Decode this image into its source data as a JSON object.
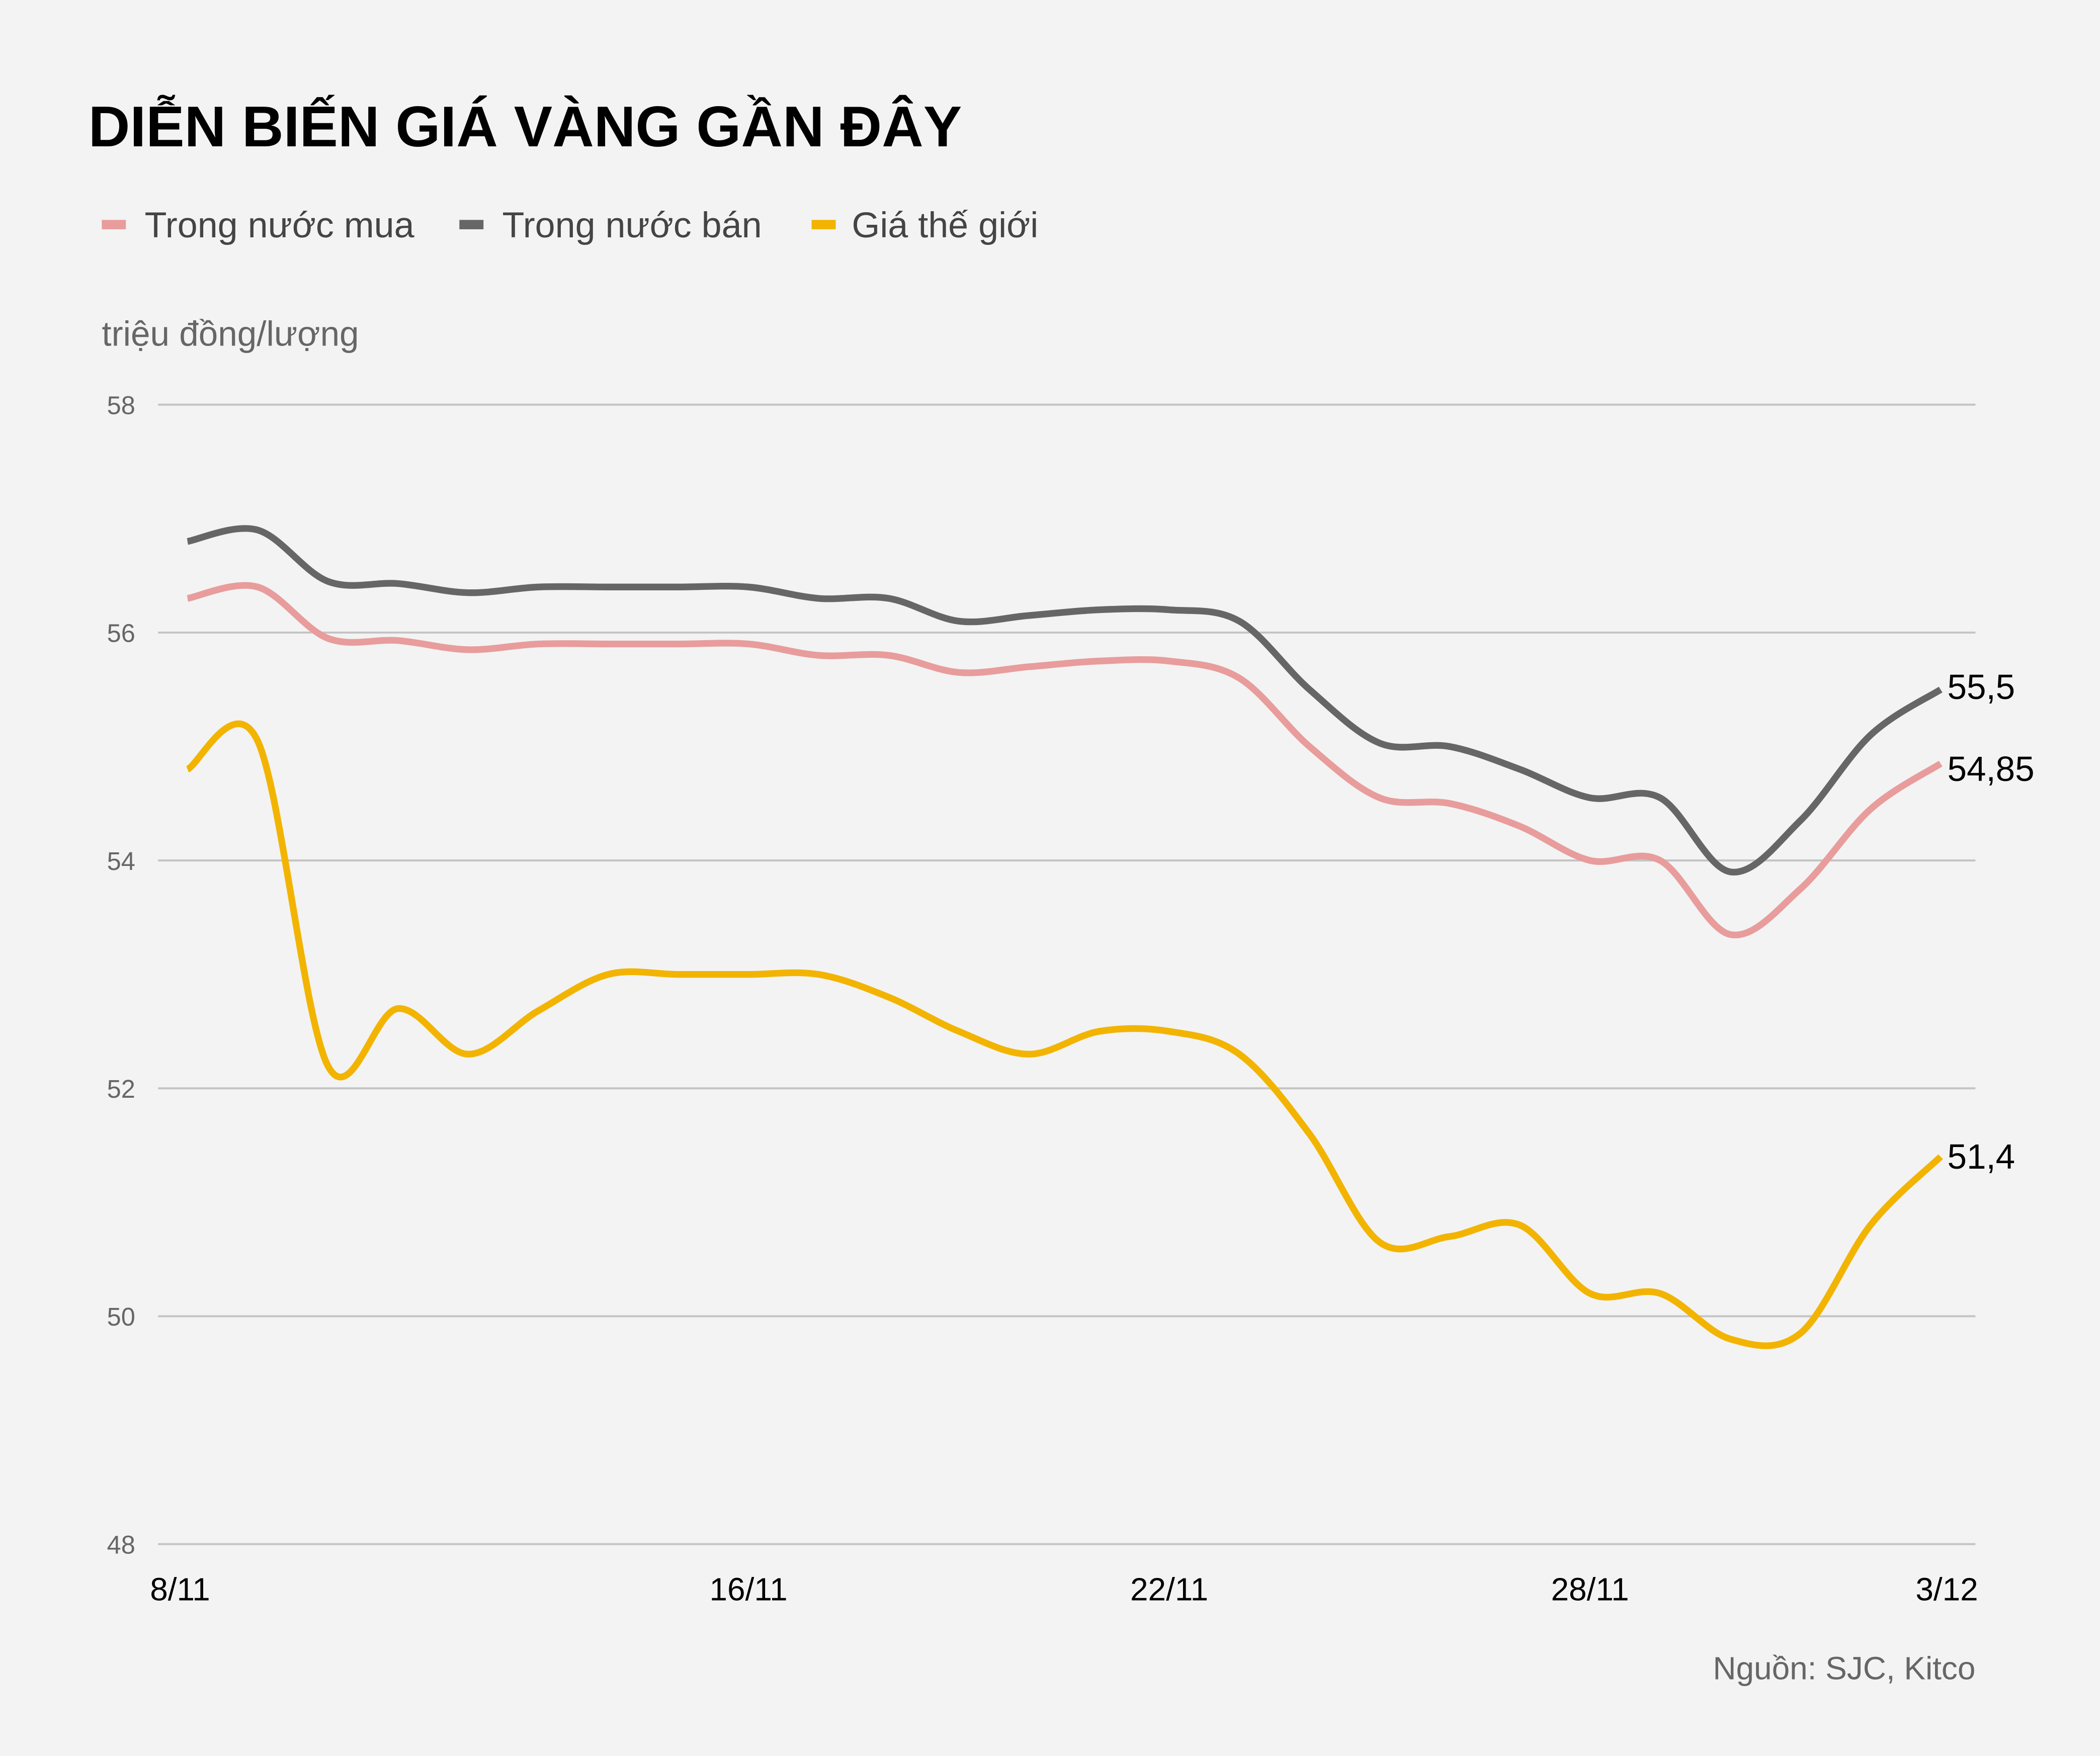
{
  "chart_data": {
    "type": "line",
    "title": "DIỄN BIẾN GIÁ VÀNG GẦN ĐÂY",
    "ylabel": "triệu đồng/lượng",
    "source": "Nguồn: SJC, Kitco",
    "ylim": [
      48,
      58
    ],
    "yticks": [
      "48",
      "50",
      "52",
      "54",
      "56",
      "58"
    ],
    "grid": true,
    "legend_position": "top-left",
    "x": [
      "8/11",
      "9/11",
      "10/11",
      "11/11",
      "12/11",
      "13/11",
      "14/11",
      "15/11",
      "16/11",
      "17/11",
      "18/11",
      "19/11",
      "20/11",
      "21/11",
      "22/11",
      "23/11",
      "24/11",
      "25/11",
      "26/11",
      "27/11",
      "28/11",
      "29/11",
      "30/11",
      "1/12",
      "2/12",
      "3/12"
    ],
    "xticks": [
      {
        "label": "8/11",
        "at": "8/11"
      },
      {
        "label": "16/11",
        "at": "16/11"
      },
      {
        "label": "22/11",
        "at": "22/11"
      },
      {
        "label": "28/11",
        "at": "28/11"
      },
      {
        "label": "3/12",
        "at": "3/12"
      }
    ],
    "series": [
      {
        "name": "Trong nước mua",
        "color": "#e89c9c",
        "end_label": "54,85",
        "values": [
          56.3,
          56.4,
          55.95,
          55.93,
          55.85,
          55.9,
          55.9,
          55.9,
          55.9,
          55.8,
          55.8,
          55.65,
          55.7,
          55.75,
          55.75,
          55.6,
          55.0,
          54.55,
          54.5,
          54.3,
          54.0,
          54.0,
          53.35,
          53.75,
          54.45,
          54.85
        ]
      },
      {
        "name": "Trong nước bán",
        "color": "#666666",
        "end_label": "55,5",
        "values": [
          56.8,
          56.9,
          56.45,
          56.43,
          56.35,
          56.4,
          56.4,
          56.4,
          56.4,
          56.3,
          56.3,
          56.1,
          56.15,
          56.2,
          56.2,
          56.1,
          55.5,
          55.03,
          55.0,
          54.8,
          54.55,
          54.55,
          53.9,
          54.35,
          55.1,
          55.5
        ]
      },
      {
        "name": "Giá thế giới",
        "color": "#f2b400",
        "end_label": "51,4",
        "values": [
          54.8,
          55.05,
          52.2,
          52.7,
          52.3,
          52.68,
          53.0,
          53.0,
          53.0,
          53.0,
          52.8,
          52.5,
          52.3,
          52.5,
          52.5,
          52.3,
          51.6,
          50.65,
          50.7,
          50.8,
          50.2,
          50.2,
          49.8,
          49.85,
          50.8,
          51.4
        ]
      }
    ]
  }
}
